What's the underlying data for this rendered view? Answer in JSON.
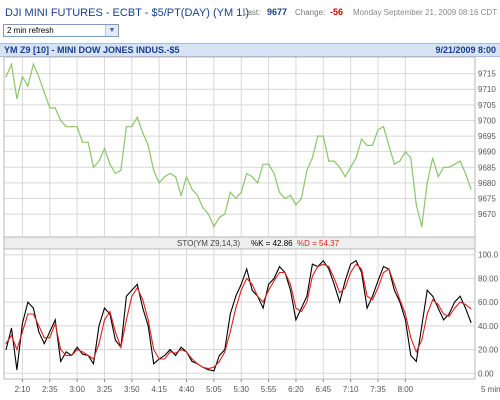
{
  "header": {
    "title": "DJI MINI FUTURES - ECBT - $5/PT(DAY) (YM 1!)",
    "last_label": "Last:",
    "last_value": "9677",
    "change_label": "Change:",
    "change_value": "-56",
    "date_text": "Monday September 21, 2009 08:16 CDT"
  },
  "refresh": {
    "selected": "2 min refresh"
  },
  "chart_title": {
    "left": "YM Z9 [10] - MINI DOW JONES INDUS.-$5",
    "right": "9/21/2009 8:00"
  },
  "indicator": {
    "name": "STO(YM Z9,14,3)",
    "k_text": "%K = 42.86",
    "d_text": "%D = 54.37"
  },
  "colors": {
    "price": "#8cc56a",
    "k": "#000000",
    "d": "#e02020",
    "grid": "#d8d8d8",
    "title_bg": "#d5e3f5",
    "brand": "#1a3d8f",
    "change": "#cc0000"
  },
  "chart_data": [
    {
      "type": "line",
      "ylim": [
        9663,
        9720
      ],
      "yticks": [
        9670,
        9675,
        9680,
        9685,
        9690,
        9695,
        9700,
        9705,
        9710,
        9715
      ],
      "xtick_labels": [
        "2:10",
        "2:35",
        "3:00",
        "3:25",
        "3:50",
        "4:15",
        "4:40",
        "5:05",
        "5:30",
        "5:55",
        "6:20",
        "6:45",
        "7:10",
        "7:35",
        "8:00"
      ],
      "series": [
        {
          "values": [
            9714,
            9718,
            9707,
            9714,
            9711,
            9718,
            9714,
            9709,
            9704,
            9704,
            9700,
            9698,
            9698,
            9698,
            9693,
            9693,
            9685,
            9687,
            9691,
            9686,
            9683,
            9684,
            9698,
            9698,
            9701,
            9696,
            9692,
            9684,
            9680,
            9682,
            9683,
            9682,
            9676,
            9682,
            9678,
            9676,
            9672,
            9670,
            9666,
            9669,
            9670,
            9677,
            9675,
            9677,
            9683,
            9682,
            9680,
            9686,
            9686,
            9683,
            9677,
            9675,
            9676,
            9673,
            9675,
            9684,
            9688,
            9695,
            9695,
            9687,
            9687,
            9685,
            9682,
            9685,
            9688,
            9694,
            9692,
            9692,
            9697,
            9698,
            9692,
            9686,
            9687,
            9690,
            9688,
            9673,
            9666,
            9680,
            9688,
            9682,
            9685,
            9685,
            9686,
            9687,
            9683,
            9678
          ]
        }
      ]
    },
    {
      "type": "line",
      "title": "STO(YM Z9,14,3)",
      "ylim": [
        -4,
        104
      ],
      "yticks": [
        0,
        20,
        40,
        60,
        80,
        100
      ],
      "ytick_labels": [
        "0.00",
        "20.00",
        "40.00",
        "60.00",
        "80.00",
        "100.0"
      ],
      "xtick_labels": [
        "2:10",
        "2:35",
        "3:00",
        "3:25",
        "3:50",
        "4:15",
        "4:40",
        "5:05",
        "5:30",
        "5:55",
        "6:20",
        "6:45",
        "7:10",
        "7:35",
        "8:00"
      ],
      "series": [
        {
          "name": "%K",
          "values": [
            20,
            38,
            3,
            42,
            60,
            55,
            35,
            25,
            35,
            45,
            10,
            18,
            15,
            22,
            16,
            15,
            8,
            40,
            55,
            50,
            28,
            22,
            65,
            70,
            75,
            55,
            40,
            8,
            12,
            15,
            20,
            15,
            22,
            18,
            10,
            8,
            5,
            3,
            2,
            15,
            20,
            50,
            65,
            75,
            88,
            70,
            65,
            55,
            75,
            80,
            90,
            85,
            70,
            45,
            55,
            65,
            92,
            90,
            95,
            88,
            75,
            60,
            78,
            92,
            95,
            85,
            55,
            65,
            78,
            90,
            88,
            70,
            60,
            45,
            15,
            10,
            40,
            70,
            65,
            55,
            45,
            50,
            60,
            65,
            55,
            42.86
          ]
        },
        {
          "name": "%D",
          "values": [
            25,
            32,
            20,
            35,
            50,
            50,
            40,
            30,
            30,
            42,
            20,
            15,
            15,
            20,
            18,
            15,
            12,
            25,
            45,
            52,
            35,
            22,
            45,
            65,
            72,
            62,
            45,
            20,
            12,
            12,
            18,
            17,
            20,
            18,
            12,
            8,
            5,
            4,
            5,
            10,
            18,
            35,
            55,
            70,
            80,
            75,
            65,
            60,
            70,
            78,
            85,
            85,
            75,
            55,
            52,
            60,
            82,
            90,
            92,
            90,
            80,
            68,
            72,
            85,
            92,
            88,
            65,
            62,
            72,
            85,
            88,
            75,
            62,
            50,
            30,
            18,
            28,
            50,
            62,
            58,
            50,
            48,
            55,
            60,
            58,
            54.37
          ]
        }
      ]
    }
  ]
}
